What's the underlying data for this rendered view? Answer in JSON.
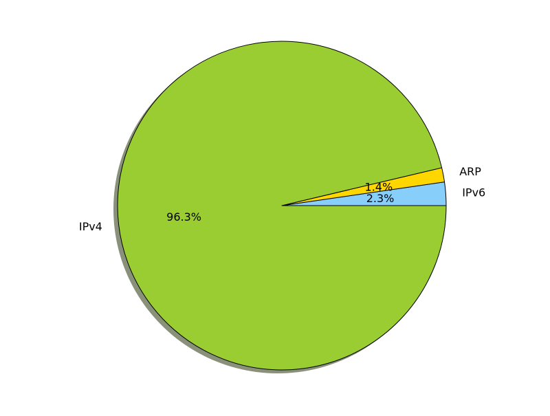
{
  "chart_data": {
    "type": "pie",
    "title": "",
    "slices": [
      {
        "label": "IPv6",
        "value": 2.3,
        "pct_label": "2.3%",
        "color": "#87CEFA"
      },
      {
        "label": "ARP",
        "value": 1.4,
        "pct_label": "1.4%",
        "color": "#FFD700"
      },
      {
        "label": "IPv4",
        "value": 96.3,
        "pct_label": "96.3%",
        "color": "#9ACD32"
      }
    ],
    "start_angle_deg": 0,
    "direction": "counterclockwise",
    "shadow": true,
    "shadow_color": "#8a917a",
    "edge_color": "#000000",
    "legend": "none"
  }
}
